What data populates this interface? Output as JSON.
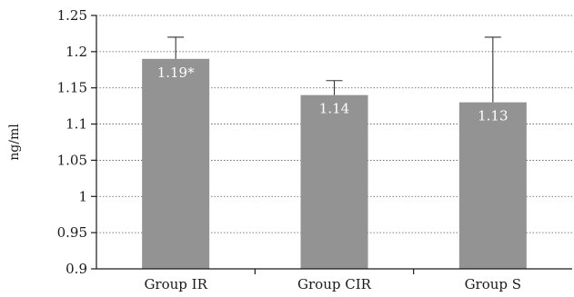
{
  "chart_data": {
    "type": "bar",
    "categories": [
      "Group IR",
      "Group CIR",
      "Group S"
    ],
    "values": [
      1.19,
      1.14,
      1.13
    ],
    "error_upper": [
      1.22,
      1.16,
      1.22
    ],
    "data_labels": [
      "1.19*",
      "1.14",
      "1.13"
    ],
    "ylabel": "ng/ml",
    "ylim": [
      0.9,
      1.25
    ],
    "yticks": [
      0.9,
      0.95,
      1,
      1.05,
      1.1,
      1.15,
      1.2,
      1.25
    ],
    "ytick_labels": [
      "0.9",
      "0.95",
      "1",
      "1.05",
      "1.1",
      "1.15",
      "1.2",
      "1.25"
    ],
    "grid": true,
    "bar_color": "#939393"
  }
}
